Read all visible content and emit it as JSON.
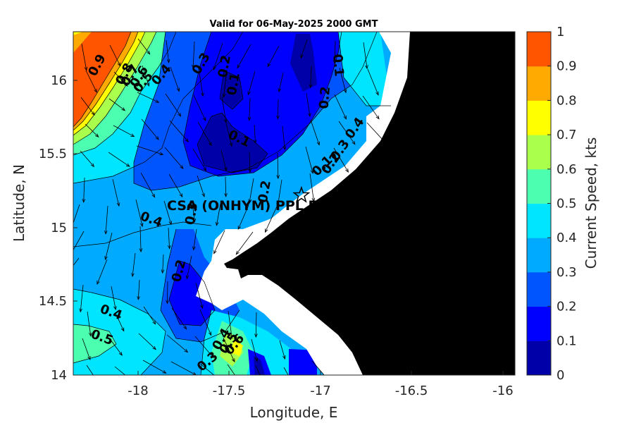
{
  "chart_data": {
    "type": "heatmap",
    "title": "Valid for 06-May-2025 2000 GMT",
    "xlabel": "Longitude, E",
    "ylabel": "Latitude, N",
    "xlim": [
      -18.35,
      -15.93
    ],
    "ylim": [
      14,
      16.33
    ],
    "xticks": [
      "-18",
      "-17.5",
      "-17",
      "-16.5",
      "-16"
    ],
    "xtick_values": [
      -18,
      -17.5,
      -17,
      -16.5,
      -16
    ],
    "yticks": [
      "14",
      "14.5",
      "15",
      "15.5",
      "16"
    ],
    "ytick_values": [
      14,
      14.5,
      15,
      15.5,
      16
    ],
    "colorbar": {
      "label": "Current Speed, kts",
      "ticks": [
        "0",
        "0.1",
        "0.2",
        "0.3",
        "0.4",
        "0.5",
        "0.6",
        "0.7",
        "0.8",
        "0.9",
        "1"
      ],
      "tick_values": [
        0,
        0.1,
        0.2,
        0.3,
        0.4,
        0.5,
        0.6,
        0.7,
        0.8,
        0.9,
        1
      ],
      "colors": [
        "#0000a8",
        "#0000ff",
        "#0055ff",
        "#00aaff",
        "#00e5ff",
        "#4cffb0",
        "#aaff4c",
        "#ffff00",
        "#ffaa00",
        "#ff5500"
      ]
    },
    "site": {
      "label": "CSA (ONHYM) PPL EE",
      "lon": -17.1,
      "lat": 15.22,
      "marker": "star"
    },
    "contour_labels": [
      {
        "text": "0.9",
        "lon": -18.2,
        "lat": 16.09,
        "rot": -62
      },
      {
        "text": "0.8",
        "lon": -18.05,
        "lat": 16.03,
        "rot": -62
      },
      {
        "text": "0.7",
        "lon": -18.02,
        "lat": 16.02,
        "rot": -58
      },
      {
        "text": "0.6",
        "lon": -17.97,
        "lat": 16.01,
        "rot": -58
      },
      {
        "text": "0.5",
        "lon": -17.95,
        "lat": 15.97,
        "rot": -50
      },
      {
        "text": "0.4",
        "lon": -17.85,
        "lat": 16.02,
        "rot": -50
      },
      {
        "text": "0.3",
        "lon": -17.63,
        "lat": 16.1,
        "rot": -60
      },
      {
        "text": "0.2",
        "lon": -17.5,
        "lat": 16.09,
        "rot": -80
      },
      {
        "text": "0.1",
        "lon": -17.45,
        "lat": 15.97,
        "rot": -80
      },
      {
        "text": "0.1",
        "lon": -17.45,
        "lat": 15.58,
        "rot": 25
      },
      {
        "text": "0.1",
        "lon": -16.92,
        "lat": 16.1,
        "rot": 85
      },
      {
        "text": "0.2",
        "lon": -16.95,
        "lat": 15.88,
        "rot": -85
      },
      {
        "text": "0.1",
        "lon": -16.97,
        "lat": 15.4,
        "rot": -45
      },
      {
        "text": "0.2",
        "lon": -16.92,
        "lat": 15.42,
        "rot": -55
      },
      {
        "text": "0.3",
        "lon": -16.87,
        "lat": 15.51,
        "rot": -55
      },
      {
        "text": "0.4",
        "lon": -16.79,
        "lat": 15.66,
        "rot": -55
      },
      {
        "text": "0.2",
        "lon": -17.28,
        "lat": 15.24,
        "rot": -80
      },
      {
        "text": "0.3",
        "lon": -17.68,
        "lat": 15.09,
        "rot": -80
      },
      {
        "text": "0.4",
        "lon": -17.93,
        "lat": 15.03,
        "rot": 20
      },
      {
        "text": "0.2",
        "lon": -17.75,
        "lat": 14.7,
        "rot": -75
      },
      {
        "text": "0.4",
        "lon": -18.15,
        "lat": 14.4,
        "rot": 20
      },
      {
        "text": "0.5",
        "lon": -18.2,
        "lat": 14.23,
        "rot": 20
      },
      {
        "text": "0.4",
        "lon": -17.52,
        "lat": 14.23,
        "rot": -60
      },
      {
        "text": "0.5",
        "lon": -17.48,
        "lat": 14.2,
        "rot": -55
      },
      {
        "text": "0.6",
        "lon": -17.45,
        "lat": 14.19,
        "rot": -50
      },
      {
        "text": "0.3",
        "lon": -17.6,
        "lat": 14.07,
        "rot": -40
      }
    ]
  }
}
